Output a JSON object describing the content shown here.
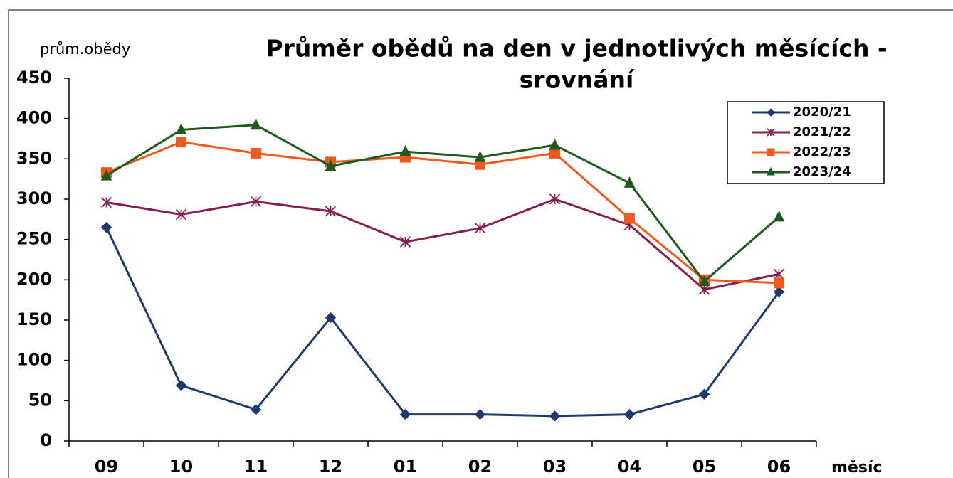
{
  "chart_data": {
    "type": "line",
    "title": [
      "Průměr obědů na den v jednotlivých měsících -",
      "srovnání"
    ],
    "y_label": "prům.obědy",
    "x_label": "měsíc",
    "categories": [
      "09",
      "10",
      "11",
      "12",
      "01",
      "02",
      "03",
      "04",
      "05",
      "06"
    ],
    "ylim": [
      0,
      450
    ],
    "yticks": [
      0,
      50,
      100,
      150,
      200,
      250,
      300,
      350,
      400,
      450
    ],
    "grid": false,
    "legend": "upper right",
    "series": [
      {
        "name": "2020/21",
        "color": "#1f3a6e",
        "marker": "diamond",
        "values": [
          265,
          69,
          39,
          153,
          33,
          33,
          31,
          33,
          58,
          185
        ]
      },
      {
        "name": "2021/22",
        "color": "#842050",
        "marker": "asterisk",
        "values": [
          296,
          281,
          297,
          285,
          247,
          264,
          300,
          268,
          188,
          207
        ]
      },
      {
        "name": "2022/23",
        "color": "#f05a1e",
        "marker": "square",
        "values": [
          333,
          371,
          357,
          346,
          352,
          343,
          357,
          276,
          200,
          196
        ]
      },
      {
        "name": "2023/24",
        "color": "#1e5a1e",
        "marker": "triangle",
        "values": [
          329,
          386,
          392,
          341,
          359,
          352,
          367,
          320,
          198,
          278
        ]
      }
    ]
  }
}
